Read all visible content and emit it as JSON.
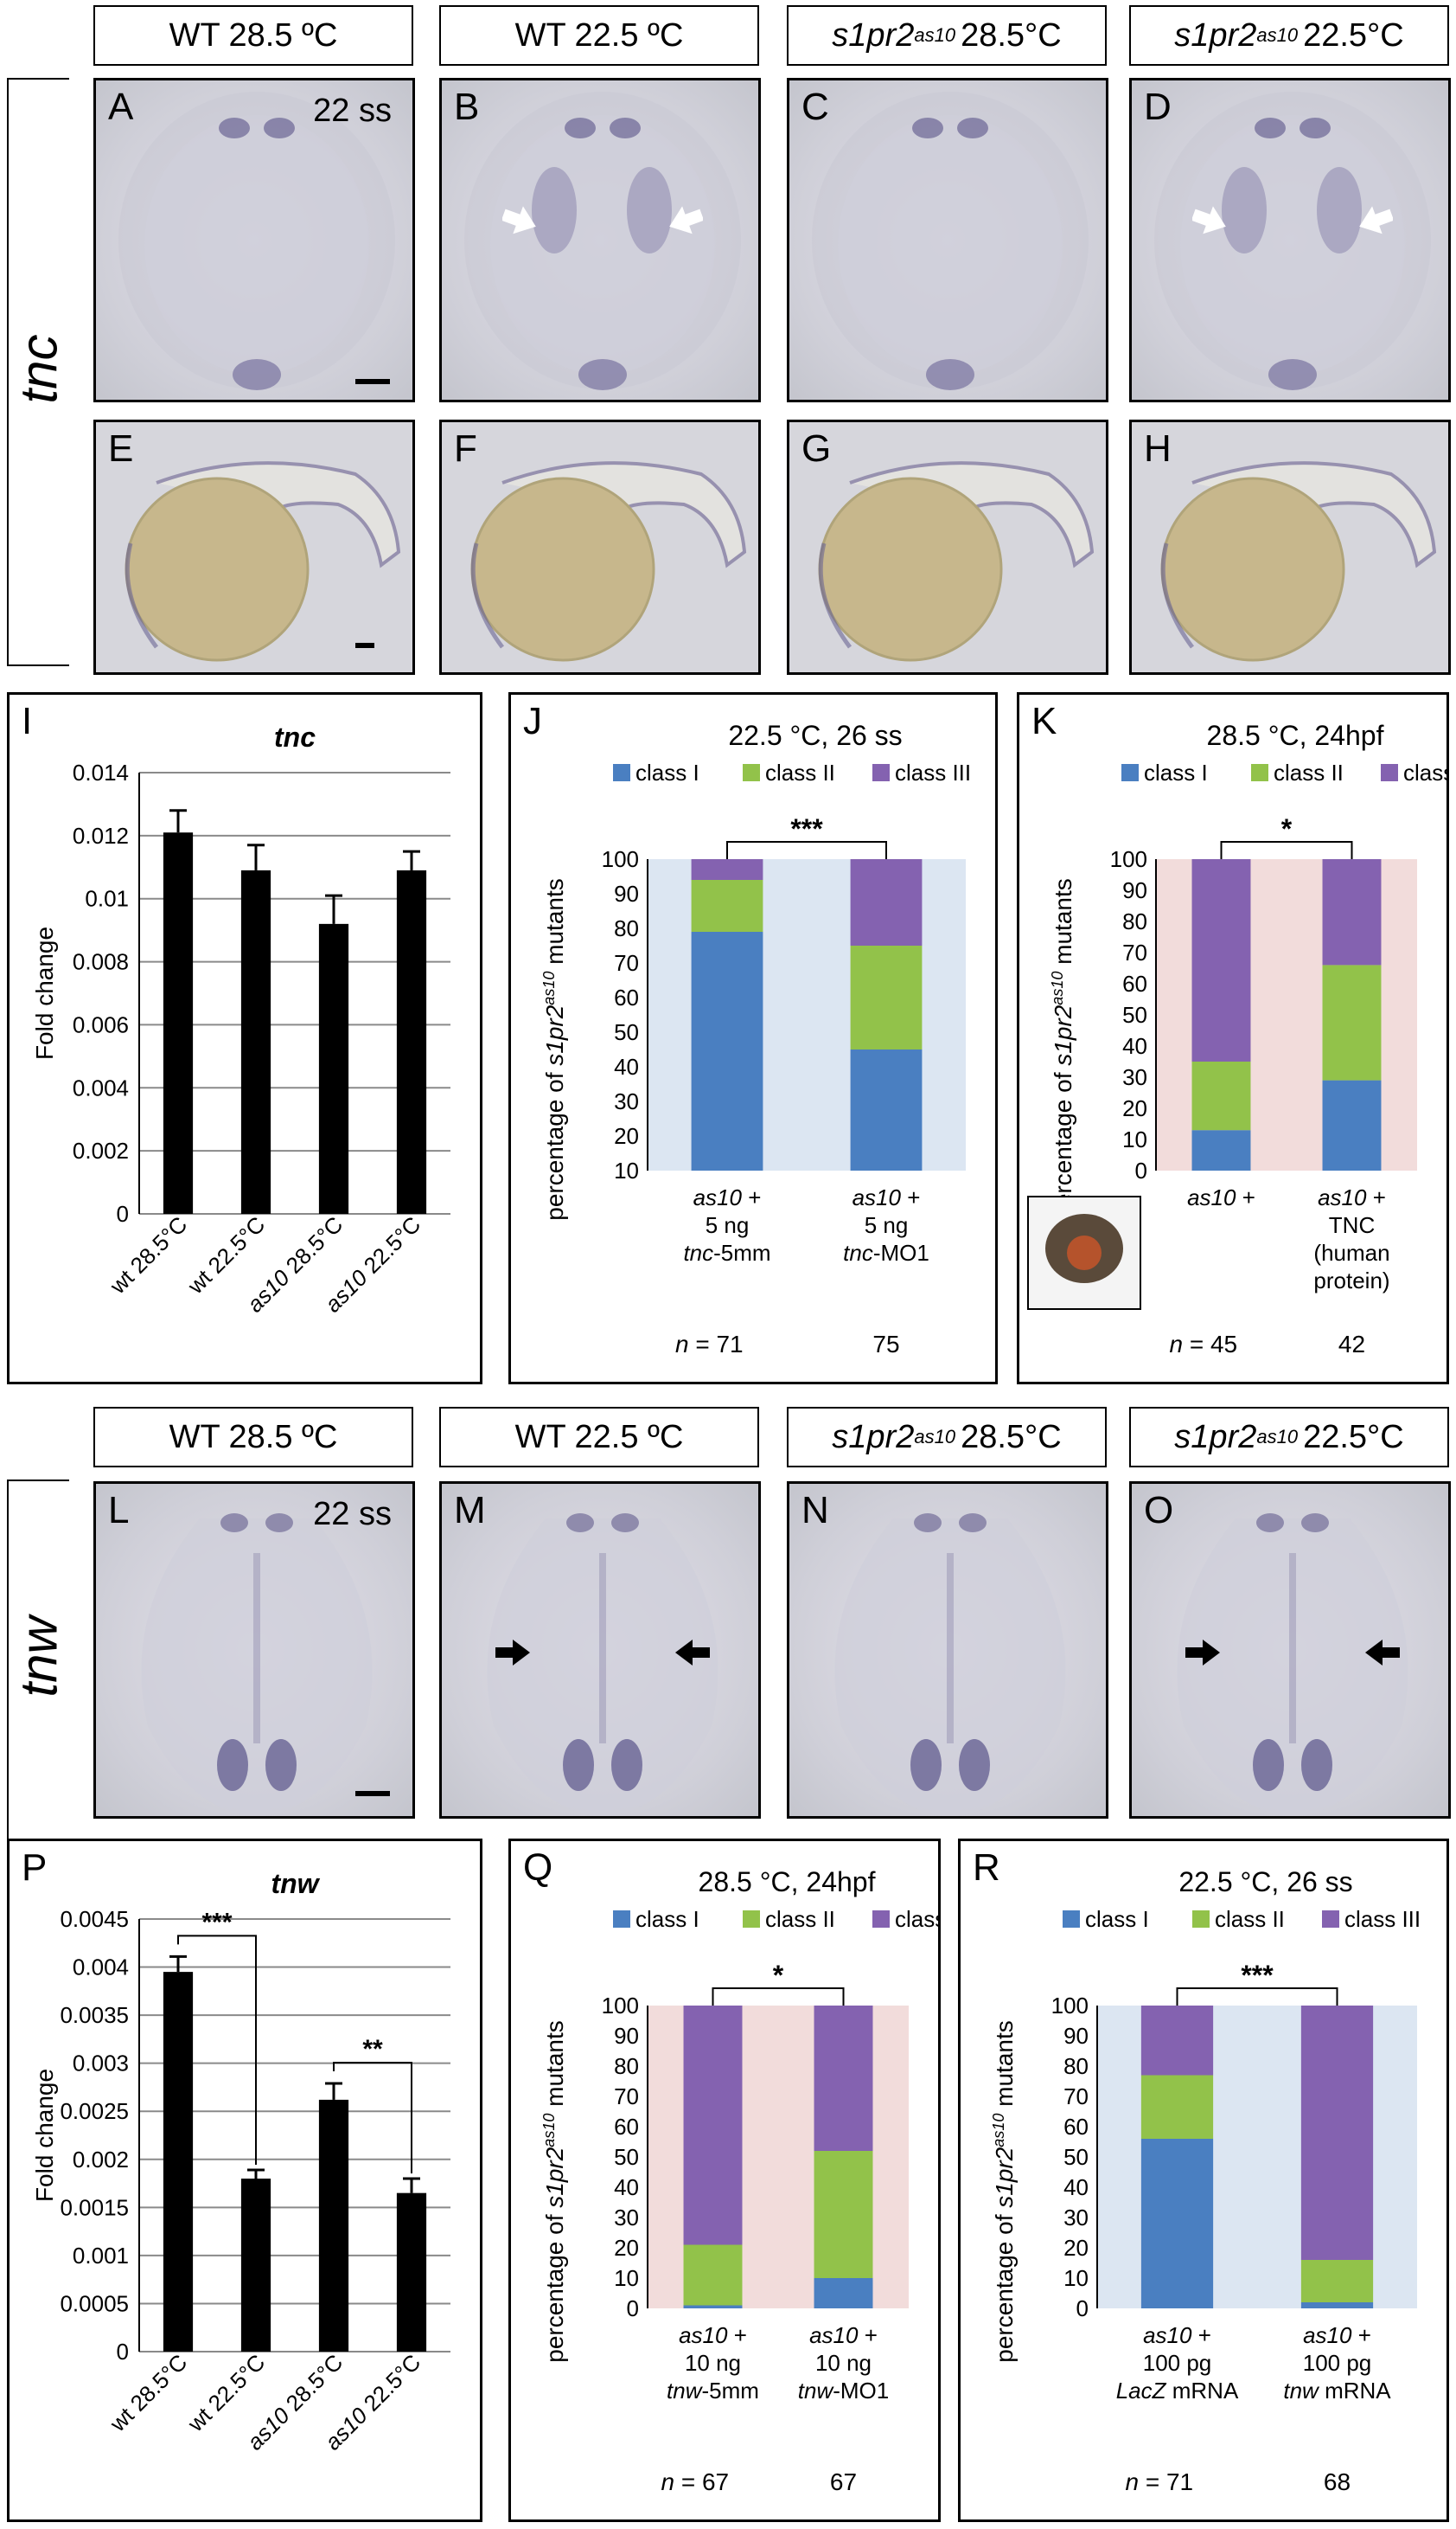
{
  "headers_top": [
    {
      "text": "WT 28.5 ºC"
    },
    {
      "text": "WT 22.5 ºC"
    },
    {
      "base": "s1pr2",
      "sup": "as10",
      "rest": " 28.5°C"
    },
    {
      "base": "s1pr2",
      "sup": "as10",
      "rest": " 22.5°C"
    }
  ],
  "headers_bottom": [
    {
      "text": "WT 28.5 ºC"
    },
    {
      "text": "WT 22.5 ºC"
    },
    {
      "base": "s1pr2",
      "sup": "as10",
      "rest": " 28.5°C"
    },
    {
      "base": "s1pr2",
      "sup": "as10",
      "rest": " 22.5°C"
    }
  ],
  "gene_labels": {
    "top": "tnc",
    "bottom": "tnw"
  },
  "panels_top": [
    "A",
    "B",
    "C",
    "D"
  ],
  "panels_mid": [
    "E",
    "F",
    "G",
    "H"
  ],
  "panels_bottom": [
    "L",
    "M",
    "N",
    "O"
  ],
  "stage_label": "22 ss",
  "colors": {
    "class1": "#4a7fc1",
    "class2": "#92c24a",
    "class3": "#8462b0",
    "blue_bg": "#dce6f2",
    "pink_bg": "#f2dcdb",
    "white_arrow": "#ffffff",
    "black_arrow": "#000000"
  },
  "chart_data": [
    {
      "panel": "I",
      "type": "bar",
      "title": "tnc",
      "ylabel": "Fold change",
      "categories": [
        "wt 28.5°C",
        "wt 22.5°C",
        "as10 28.5°C",
        "as10 22.5°C"
      ],
      "values": [
        0.0121,
        0.0109,
        0.0092,
        0.0109
      ],
      "errors": [
        0.0007,
        0.0008,
        0.0009,
        0.0006
      ],
      "ylim": [
        0,
        0.014
      ],
      "ticks": [
        "0",
        "0.002",
        "0.004",
        "0.006",
        "0.008",
        "0.01",
        "0.012",
        "0.014"
      ],
      "grid": true
    },
    {
      "panel": "J",
      "type": "bar",
      "title": "22.5 °C, 26 ss",
      "legend": [
        "class I",
        "class II",
        "class III"
      ],
      "ylabel_parts": [
        "percentage of ",
        "s1pr2",
        "as10",
        " mutants"
      ],
      "ylim": [
        10,
        100
      ],
      "ticks": [
        "10",
        "20",
        "30",
        "40",
        "50",
        "60",
        "70",
        "80",
        "90",
        "100"
      ],
      "categories": [
        [
          "as10 +",
          "5 ng",
          "tnc-5mm"
        ],
        [
          "as10 +",
          "5 ng",
          "tnc-MO1"
        ]
      ],
      "series": [
        {
          "name": "class I",
          "values": [
            79,
            45
          ]
        },
        {
          "name": "class II",
          "values": [
            15,
            30
          ]
        },
        {
          "name": "class III",
          "values": [
            6,
            25
          ]
        }
      ],
      "n_label": "n",
      "n": [
        "71",
        "75"
      ],
      "significance": "***",
      "background": "blue"
    },
    {
      "panel": "K",
      "type": "bar",
      "title": "28.5 °C, 24hpf",
      "legend": [
        "class I",
        "class II",
        "class III"
      ],
      "ylabel_parts": [
        "percentage of ",
        "s1pr2",
        "as10",
        " mutants"
      ],
      "ylim": [
        0,
        100
      ],
      "ticks": [
        "0",
        "10",
        "20",
        "30",
        "40",
        "50",
        "60",
        "70",
        "80",
        "90",
        "100"
      ],
      "categories": [
        [
          "as10 +"
        ],
        [
          "as10 +",
          "TNC",
          "(human",
          "protein)"
        ]
      ],
      "series": [
        {
          "name": "class I",
          "values": [
            13,
            29
          ]
        },
        {
          "name": "class II",
          "values": [
            22,
            37
          ]
        },
        {
          "name": "class III",
          "values": [
            65,
            34
          ]
        }
      ],
      "n_label": "n",
      "n": [
        "45",
        "42"
      ],
      "significance": "*",
      "background": "pink"
    },
    {
      "panel": "P",
      "type": "bar",
      "title": "tnw",
      "ylabel": "Fold change",
      "categories": [
        "wt 28.5°C",
        "wt 22.5°C",
        "as10 28.5°C",
        "as10 22.5°C"
      ],
      "values": [
        0.00395,
        0.0018,
        0.00262,
        0.00165
      ],
      "errors": [
        0.00016,
        9e-05,
        0.00017,
        0.00015
      ],
      "ylim": [
        0,
        0.0045
      ],
      "ticks": [
        "0",
        "0.0005",
        "0.001",
        "0.0015",
        "0.002",
        "0.0025",
        "0.003",
        "0.0035",
        "0.004",
        "0.0045"
      ],
      "grid": true,
      "significance": [
        "***",
        "**"
      ]
    },
    {
      "panel": "Q",
      "type": "bar",
      "title": "28.5 °C, 24hpf",
      "legend": [
        "class I",
        "class II",
        "class III"
      ],
      "ylabel_parts": [
        "percentage of ",
        "s1pr2",
        "as10",
        " mutants"
      ],
      "ylim": [
        0,
        100
      ],
      "ticks": [
        "0",
        "10",
        "20",
        "30",
        "40",
        "50",
        "60",
        "70",
        "80",
        "90",
        "100"
      ],
      "categories": [
        [
          "as10 +",
          "10 ng",
          "tnw-5mm"
        ],
        [
          "as10 +",
          "10 ng",
          "tnw-MO1"
        ]
      ],
      "series": [
        {
          "name": "class I",
          "values": [
            1,
            10
          ]
        },
        {
          "name": "class II",
          "values": [
            20,
            42
          ]
        },
        {
          "name": "class III",
          "values": [
            79,
            48
          ]
        }
      ],
      "n_label": "n",
      "n": [
        "67",
        "67"
      ],
      "significance": "*",
      "background": "pink"
    },
    {
      "panel": "R",
      "type": "bar",
      "title": "22.5 °C, 26 ss",
      "legend": [
        "class I",
        "class II",
        "class III"
      ],
      "ylabel_parts": [
        "percentage of ",
        "s1pr2",
        "as10",
        " mutants"
      ],
      "ylim": [
        0,
        100
      ],
      "ticks": [
        "0",
        "10",
        "20",
        "30",
        "40",
        "50",
        "60",
        "70",
        "80",
        "90",
        "100"
      ],
      "categories": [
        [
          "as10 +",
          "100 pg",
          "LacZ mRNA"
        ],
        [
          "as10 +",
          "100 pg",
          "tnw mRNA"
        ]
      ],
      "series": [
        {
          "name": "class I",
          "values": [
            56,
            2
          ]
        },
        {
          "name": "class II",
          "values": [
            21,
            14
          ]
        },
        {
          "name": "class III",
          "values": [
            23,
            84
          ]
        }
      ],
      "n_label": "n",
      "n": [
        "71",
        "68"
      ],
      "significance": "***",
      "background": "blue"
    }
  ]
}
